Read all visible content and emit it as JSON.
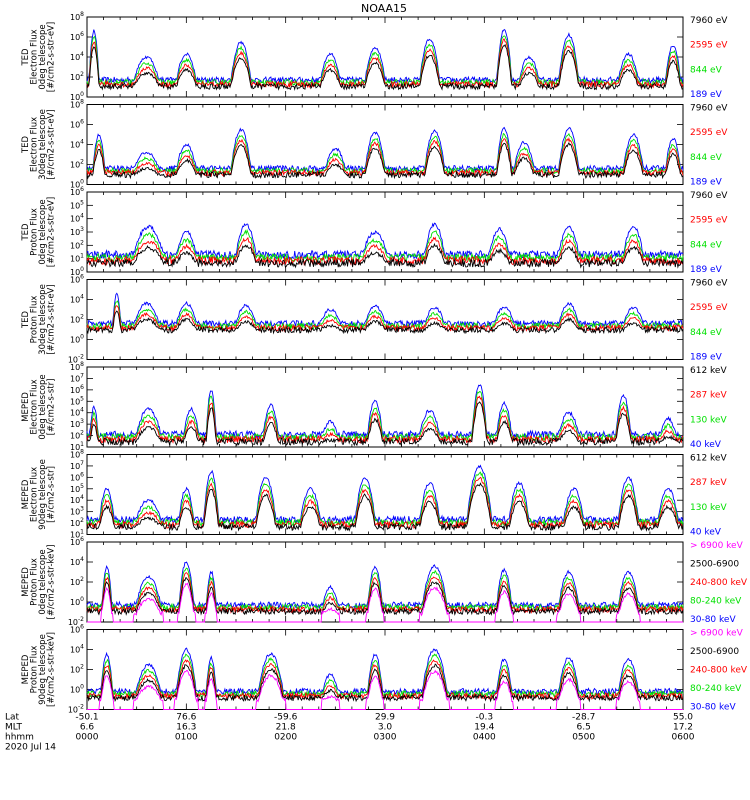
{
  "title": "NOAA15",
  "colors": {
    "blue": "#0000ff",
    "red": "#ff0000",
    "green": "#00e000",
    "black": "#000000",
    "magenta": "#ff00ff"
  },
  "chart_data": {
    "type": "line",
    "title": "NOAA15",
    "date": "2020 Jul 14",
    "x_axis": {
      "row_labels": [
        "Lat",
        "MLT",
        "hhmm"
      ],
      "ticks": [
        {
          "hhmm": "0000",
          "lat": "-50.1",
          "mlt": "6.6"
        },
        {
          "hhmm": "0100",
          "lat": "76.6",
          "mlt": "16.3"
        },
        {
          "hhmm": "0200",
          "lat": "-59.6",
          "mlt": "21.8"
        },
        {
          "hhmm": "0300",
          "lat": "29.9",
          "mlt": "3.0"
        },
        {
          "hhmm": "0400",
          "lat": "-0.3",
          "mlt": "19.4"
        },
        {
          "hhmm": "0500",
          "lat": "-28.7",
          "mlt": "6.5"
        },
        {
          "hhmm": "0600",
          "lat": "55.0",
          "mlt": "17.2"
        }
      ]
    },
    "panels": [
      {
        "ylabel_lines": [
          "TED",
          "Electron Flux",
          "0deg telescope",
          "[#/cm2-s-str-eV]"
        ],
        "ylog": true,
        "ylim_exp": [
          0,
          8
        ],
        "y_tick_exps": [
          0,
          2,
          4,
          6,
          8
        ],
        "legend": [
          {
            "label": "7960 eV",
            "color": "black"
          },
          {
            "label": "2595 eV",
            "color": "red"
          },
          {
            "label": "844 eV",
            "color": "green"
          },
          {
            "label": "189 eV",
            "color": "blue"
          }
        ],
        "background_exp": 1.7,
        "events": [
          {
            "t": 0.07,
            "w": 0.1,
            "peak": 6.6
          },
          {
            "t": 0.6,
            "w": 0.25,
            "peak": 4.0
          },
          {
            "t": 1.0,
            "w": 0.2,
            "peak": 4.3
          },
          {
            "t": 1.55,
            "w": 0.2,
            "peak": 5.5
          },
          {
            "t": 2.45,
            "w": 0.2,
            "peak": 4.3
          },
          {
            "t": 2.9,
            "w": 0.2,
            "peak": 5.0
          },
          {
            "t": 3.45,
            "w": 0.2,
            "peak": 5.8
          },
          {
            "t": 4.2,
            "w": 0.15,
            "peak": 6.8
          },
          {
            "t": 4.45,
            "w": 0.2,
            "peak": 4.0
          },
          {
            "t": 4.85,
            "w": 0.2,
            "peak": 6.2
          },
          {
            "t": 5.45,
            "w": 0.2,
            "peak": 4.3
          },
          {
            "t": 5.9,
            "w": 0.15,
            "peak": 5.2
          }
        ]
      },
      {
        "ylabel_lines": [
          "TED",
          "Electron Flux",
          "30deg telescope",
          "[#/cm2-s-str-eV]"
        ],
        "ylog": true,
        "ylim_exp": [
          0,
          8
        ],
        "y_tick_exps": [
          0,
          2,
          4,
          6,
          8
        ],
        "legend": [
          {
            "label": "7960 eV",
            "color": "black"
          },
          {
            "label": "2595 eV",
            "color": "red"
          },
          {
            "label": "844 eV",
            "color": "green"
          },
          {
            "label": "189 eV",
            "color": "blue"
          }
        ],
        "background_exp": 1.6,
        "events": [
          {
            "t": 0.12,
            "w": 0.12,
            "peak": 5.0
          },
          {
            "t": 0.6,
            "w": 0.25,
            "peak": 3.2
          },
          {
            "t": 1.0,
            "w": 0.2,
            "peak": 4.0
          },
          {
            "t": 1.55,
            "w": 0.2,
            "peak": 5.5
          },
          {
            "t": 2.5,
            "w": 0.2,
            "peak": 3.6
          },
          {
            "t": 2.9,
            "w": 0.2,
            "peak": 5.2
          },
          {
            "t": 3.5,
            "w": 0.2,
            "peak": 5.4
          },
          {
            "t": 4.2,
            "w": 0.15,
            "peak": 5.6
          },
          {
            "t": 4.4,
            "w": 0.2,
            "peak": 4.2
          },
          {
            "t": 4.85,
            "w": 0.2,
            "peak": 5.6
          },
          {
            "t": 5.5,
            "w": 0.2,
            "peak": 5.0
          },
          {
            "t": 5.9,
            "w": 0.15,
            "peak": 4.6
          }
        ]
      },
      {
        "ylabel_lines": [
          "TED",
          "Proton Flux",
          "0deg telescope",
          "[#/cm2-s-str-eV]"
        ],
        "ylog": true,
        "ylim_exp": [
          0,
          6
        ],
        "y_tick_exps": [
          0,
          1,
          2,
          3,
          4,
          5,
          6
        ],
        "legend": [
          {
            "label": "7960 eV",
            "color": "black"
          },
          {
            "label": "2595 eV",
            "color": "red"
          },
          {
            "label": "844 eV",
            "color": "green"
          },
          {
            "label": "189 eV",
            "color": "blue"
          }
        ],
        "background_exp": 1.3,
        "events": [
          {
            "t": 0.62,
            "w": 0.3,
            "peak": 3.4
          },
          {
            "t": 1.0,
            "w": 0.2,
            "peak": 3.0
          },
          {
            "t": 1.6,
            "w": 0.2,
            "peak": 3.6
          },
          {
            "t": 2.9,
            "w": 0.25,
            "peak": 3.0
          },
          {
            "t": 3.5,
            "w": 0.2,
            "peak": 3.6
          },
          {
            "t": 4.15,
            "w": 0.2,
            "peak": 3.2
          },
          {
            "t": 4.85,
            "w": 0.2,
            "peak": 3.4
          },
          {
            "t": 5.5,
            "w": 0.2,
            "peak": 3.4
          }
        ]
      },
      {
        "ylabel_lines": [
          "TED",
          "Proton Flux",
          "30deg telescope",
          "[#/cm2-s-str-eV]"
        ],
        "ylog": true,
        "ylim_exp": [
          -2,
          6
        ],
        "y_tick_exps": [
          -2,
          0,
          2,
          4,
          6
        ],
        "legend": [
          {
            "label": "7960 eV",
            "color": "black"
          },
          {
            "label": "2595 eV",
            "color": "red"
          },
          {
            "label": "844 eV",
            "color": "green"
          },
          {
            "label": "189 eV",
            "color": "blue"
          }
        ],
        "background_exp": 1.6,
        "events": [
          {
            "t": 0.3,
            "w": 0.08,
            "peak": 4.5
          },
          {
            "t": 0.6,
            "w": 0.25,
            "peak": 3.6
          },
          {
            "t": 1.0,
            "w": 0.2,
            "peak": 3.6
          },
          {
            "t": 1.6,
            "w": 0.2,
            "peak": 3.4
          },
          {
            "t": 2.45,
            "w": 0.2,
            "peak": 3.0
          },
          {
            "t": 2.9,
            "w": 0.2,
            "peak": 3.4
          },
          {
            "t": 3.5,
            "w": 0.2,
            "peak": 3.2
          },
          {
            "t": 4.2,
            "w": 0.2,
            "peak": 3.2
          },
          {
            "t": 4.85,
            "w": 0.2,
            "peak": 3.6
          },
          {
            "t": 5.5,
            "w": 0.2,
            "peak": 3.2
          }
        ]
      },
      {
        "ylabel_lines": [
          "MEPED",
          "Electron Flux",
          "0deg telescope",
          "[#/cm2-s-str]"
        ],
        "ylog": true,
        "ylim_exp": [
          1,
          8
        ],
        "y_tick_exps": [
          1,
          2,
          3,
          4,
          5,
          6,
          7,
          8
        ],
        "legend": [
          {
            "label": "612 keV",
            "color": "black"
          },
          {
            "label": "287 keV",
            "color": "red"
          },
          {
            "label": "130 keV",
            "color": "green"
          },
          {
            "label": "40 keV",
            "color": "blue"
          }
        ],
        "background_exp": 2.1,
        "events": [
          {
            "t": 0.07,
            "w": 0.08,
            "peak": 4.5
          },
          {
            "t": 0.62,
            "w": 0.25,
            "peak": 4.3
          },
          {
            "t": 1.05,
            "w": 0.15,
            "peak": 4.3
          },
          {
            "t": 1.25,
            "w": 0.1,
            "peak": 6.0
          },
          {
            "t": 1.85,
            "w": 0.15,
            "peak": 4.7
          },
          {
            "t": 2.45,
            "w": 0.15,
            "peak": 3.2
          },
          {
            "t": 2.9,
            "w": 0.15,
            "peak": 5.0
          },
          {
            "t": 3.45,
            "w": 0.2,
            "peak": 4.2
          },
          {
            "t": 3.95,
            "w": 0.15,
            "peak": 6.5
          },
          {
            "t": 4.2,
            "w": 0.15,
            "peak": 4.8
          },
          {
            "t": 4.85,
            "w": 0.2,
            "peak": 4.0
          },
          {
            "t": 5.4,
            "w": 0.15,
            "peak": 5.5
          },
          {
            "t": 5.85,
            "w": 0.15,
            "peak": 3.5
          }
        ]
      },
      {
        "ylabel_lines": [
          "MEPED",
          "Electron Flux",
          "90deg telescope",
          "[#/cm2-s-str]"
        ],
        "ylog": true,
        "ylim_exp": [
          1,
          8
        ],
        "y_tick_exps": [
          1,
          2,
          3,
          4,
          5,
          6,
          7,
          8
        ],
        "legend": [
          {
            "label": "612 keV",
            "color": "black"
          },
          {
            "label": "287 keV",
            "color": "red"
          },
          {
            "label": "130 keV",
            "color": "green"
          },
          {
            "label": "40 keV",
            "color": "blue"
          }
        ],
        "background_exp": 2.3,
        "events": [
          {
            "t": 0.2,
            "w": 0.15,
            "peak": 5.0
          },
          {
            "t": 0.62,
            "w": 0.25,
            "peak": 4.0
          },
          {
            "t": 1.0,
            "w": 0.15,
            "peak": 5.0
          },
          {
            "t": 1.25,
            "w": 0.15,
            "peak": 6.5
          },
          {
            "t": 1.8,
            "w": 0.2,
            "peak": 6.0
          },
          {
            "t": 2.25,
            "w": 0.2,
            "peak": 5.0
          },
          {
            "t": 2.8,
            "w": 0.2,
            "peak": 6.0
          },
          {
            "t": 3.45,
            "w": 0.2,
            "peak": 5.5
          },
          {
            "t": 3.95,
            "w": 0.25,
            "peak": 7.0
          },
          {
            "t": 4.35,
            "w": 0.2,
            "peak": 5.5
          },
          {
            "t": 4.9,
            "w": 0.2,
            "peak": 5.0
          },
          {
            "t": 5.45,
            "w": 0.2,
            "peak": 6.0
          },
          {
            "t": 5.85,
            "w": 0.2,
            "peak": 5.0
          }
        ]
      },
      {
        "ylabel_lines": [
          "MEPED",
          "Proton Flux",
          "0deg telescope",
          "[#/cm2-s-str-keV]"
        ],
        "ylog": true,
        "ylim_exp": [
          -2,
          6
        ],
        "y_tick_exps": [
          -2,
          0,
          2,
          4,
          6
        ],
        "legend": [
          {
            "label": "> 6900 keV",
            "color": "magenta"
          },
          {
            "label": "2500-6900",
            "color": "black"
          },
          {
            "label": "240-800 keV",
            "color": "red"
          },
          {
            "label": "80-240 keV",
            "color": "green"
          },
          {
            "label": "30-80 keV",
            "color": "blue"
          }
        ],
        "background_exp": -0.3,
        "events": [
          {
            "t": 0.2,
            "w": 0.1,
            "peak": 3.5
          },
          {
            "t": 0.62,
            "w": 0.25,
            "peak": 2.5
          },
          {
            "t": 1.0,
            "w": 0.15,
            "peak": 4.0
          },
          {
            "t": 1.25,
            "w": 0.1,
            "peak": 3.0
          },
          {
            "t": 2.45,
            "w": 0.15,
            "peak": 1.5
          },
          {
            "t": 2.9,
            "w": 0.15,
            "peak": 3.5
          },
          {
            "t": 3.5,
            "w": 0.25,
            "peak": 3.6
          },
          {
            "t": 4.2,
            "w": 0.15,
            "peak": 3.2
          },
          {
            "t": 4.85,
            "w": 0.2,
            "peak": 3.0
          },
          {
            "t": 5.45,
            "w": 0.2,
            "peak": 3.0
          }
        ]
      },
      {
        "ylabel_lines": [
          "MEPED",
          "Proton Flux",
          "90deg telescope",
          "[#/cm2-s-str-keV]"
        ],
        "ylog": true,
        "ylim_exp": [
          -2,
          6
        ],
        "y_tick_exps": [
          -2,
          0,
          2,
          4,
          6
        ],
        "legend": [
          {
            "label": "> 6900 keV",
            "color": "magenta"
          },
          {
            "label": "2500-6900",
            "color": "black"
          },
          {
            "label": "240-800 keV",
            "color": "red"
          },
          {
            "label": "80-240 keV",
            "color": "green"
          },
          {
            "label": "30-80 keV",
            "color": "blue"
          }
        ],
        "background_exp": -0.2,
        "events": [
          {
            "t": 0.2,
            "w": 0.12,
            "peak": 3.5
          },
          {
            "t": 0.62,
            "w": 0.25,
            "peak": 2.5
          },
          {
            "t": 1.0,
            "w": 0.2,
            "peak": 4.0
          },
          {
            "t": 1.25,
            "w": 0.1,
            "peak": 3.2
          },
          {
            "t": 1.85,
            "w": 0.25,
            "peak": 3.6
          },
          {
            "t": 2.45,
            "w": 0.15,
            "peak": 1.5
          },
          {
            "t": 2.9,
            "w": 0.15,
            "peak": 3.5
          },
          {
            "t": 3.5,
            "w": 0.25,
            "peak": 4.0
          },
          {
            "t": 4.2,
            "w": 0.15,
            "peak": 3.0
          },
          {
            "t": 4.85,
            "w": 0.2,
            "peak": 3.2
          },
          {
            "t": 5.45,
            "w": 0.2,
            "peak": 3.0
          }
        ]
      }
    ]
  }
}
